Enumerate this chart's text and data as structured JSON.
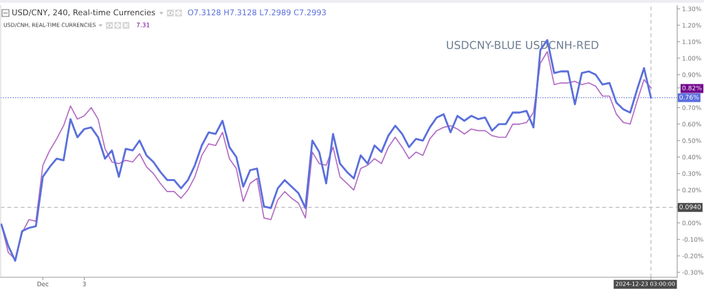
{
  "chart_data": {
    "type": "line",
    "title": "USD/CNY, 240, Real-time Currencies",
    "subtitle": "USD/CNH, REAL-TIME CURRENCIES",
    "categories": [
      null,
      null,
      null,
      null,
      null,
      null,
      "Dec",
      null,
      null,
      null,
      null,
      null,
      "3",
      null,
      null,
      null,
      null,
      null,
      null,
      null,
      null,
      null,
      null,
      null,
      null,
      null,
      null,
      null,
      null,
      null,
      null,
      null,
      null,
      null,
      null,
      null,
      null,
      null,
      null,
      null,
      null,
      null,
      null,
      null,
      null,
      null,
      null,
      null,
      null,
      null,
      null,
      null,
      null,
      null,
      null,
      null,
      null,
      null,
      null,
      null,
      null,
      null,
      null,
      null,
      null,
      null,
      null,
      null,
      null,
      null,
      null,
      null,
      null,
      null,
      null,
      null,
      null,
      null,
      null,
      null,
      null,
      null,
      null,
      null,
      null,
      null,
      null,
      null,
      null,
      null,
      null,
      null,
      null,
      null,
      "2024-12-23 03:00:00"
    ],
    "series": [
      {
        "color": "#5a6fdb",
        "values": [
          -0.01,
          -0.14,
          -0.23,
          -0.05,
          -0.03,
          -0.02,
          0.28,
          0.34,
          0.39,
          0.38,
          0.63,
          0.52,
          0.57,
          0.58,
          0.52,
          0.39,
          0.44,
          0.28,
          0.45,
          0.44,
          0.5,
          0.41,
          0.37,
          0.31,
          0.26,
          0.26,
          0.21,
          0.26,
          0.35,
          0.47,
          0.55,
          0.54,
          0.62,
          0.46,
          0.4,
          0.22,
          0.32,
          0.33,
          0.1,
          0.09,
          0.21,
          0.26,
          0.22,
          0.18,
          0.09,
          0.5,
          0.43,
          0.24,
          0.54,
          0.36,
          0.31,
          0.27,
          0.41,
          0.36,
          0.47,
          0.43,
          0.53,
          0.59,
          0.54,
          0.46,
          0.51,
          0.5,
          0.58,
          0.64,
          0.66,
          0.55,
          0.65,
          0.62,
          0.65,
          0.63,
          0.64,
          0.56,
          0.6,
          0.6,
          0.67,
          0.67,
          0.68,
          0.58,
          1.05,
          1.11,
          0.91,
          0.92,
          0.92,
          0.72,
          0.91,
          0.92,
          0.9,
          0.84,
          0.85,
          0.73,
          0.69,
          0.67,
          0.81,
          0.94,
          0.76
        ]
      },
      {
        "color": "#b36cc4",
        "values": [
          -0.01,
          -0.18,
          -0.22,
          -0.06,
          0.02,
          0.01,
          0.35,
          0.44,
          0.51,
          0.59,
          0.71,
          0.63,
          0.65,
          0.7,
          0.63,
          0.45,
          0.37,
          0.36,
          0.38,
          0.37,
          0.42,
          0.34,
          0.3,
          0.24,
          0.19,
          0.19,
          0.15,
          0.2,
          0.28,
          0.41,
          0.48,
          0.47,
          0.55,
          0.39,
          0.33,
          0.13,
          0.24,
          0.27,
          0.03,
          0.02,
          0.14,
          0.19,
          0.15,
          0.12,
          0.03,
          0.43,
          0.36,
          0.35,
          0.46,
          0.28,
          0.24,
          0.2,
          0.33,
          0.35,
          0.39,
          0.36,
          0.46,
          0.52,
          0.46,
          0.39,
          0.43,
          0.41,
          0.51,
          0.56,
          0.58,
          0.59,
          0.57,
          0.54,
          0.57,
          0.56,
          0.56,
          0.53,
          0.52,
          0.52,
          0.6,
          0.6,
          0.61,
          0.67,
          0.97,
          1.04,
          0.84,
          0.85,
          0.85,
          0.86,
          0.84,
          0.85,
          0.83,
          0.77,
          0.77,
          0.66,
          0.61,
          0.6,
          0.74,
          0.87,
          0.82
        ]
      }
    ],
    "ylim": [
      -0.33,
      1.32
    ],
    "yticks": [
      {
        "value": -0.3,
        "label": "-0.30%"
      },
      {
        "value": -0.2,
        "label": "-0.20%"
      },
      {
        "value": -0.1,
        "label": "-0.10%"
      },
      {
        "value": 0,
        "label": "0.00%"
      },
      {
        "value": 0.1,
        "label": null
      },
      {
        "value": 0.2,
        "label": "0.20%"
      },
      {
        "value": 0.3,
        "label": "0.30%"
      },
      {
        "value": 0.4,
        "label": "0.40%"
      },
      {
        "value": 0.5,
        "label": "0.50%"
      },
      {
        "value": 0.6,
        "label": "0.60%"
      },
      {
        "value": 0.7,
        "label": "0.70%"
      },
      {
        "value": 0.82,
        "label": "0.82%"
      },
      {
        "value": 0.9,
        "label": "0.90%"
      },
      {
        "value": 1.0,
        "label": "1.00%"
      },
      {
        "value": 1.1,
        "label": "1.10%"
      },
      {
        "value": 1.2,
        "label": "1.20%"
      },
      {
        "value": 1.3,
        "label": "1.30%"
      }
    ],
    "ref_lines": [
      {
        "axis": "y",
        "value": 0.76,
        "label": "0.76%",
        "color": "#5c70de",
        "line_style": "dotted"
      },
      {
        "axis": "y",
        "value": 0.094,
        "label": "0.0940",
        "color": "#c4c4c4",
        "line_style": "dashed"
      },
      {
        "axis": "x",
        "value": "2024-12-23 03:00:00",
        "color": "#c4c4c4",
        "line_style": "dashed"
      }
    ],
    "annotations": [
      "O7.3128 H7.3128 L7.2989 C7.2993",
      "7.31",
      "USDCNY-BLUE USDCNH-RED"
    ]
  }
}
